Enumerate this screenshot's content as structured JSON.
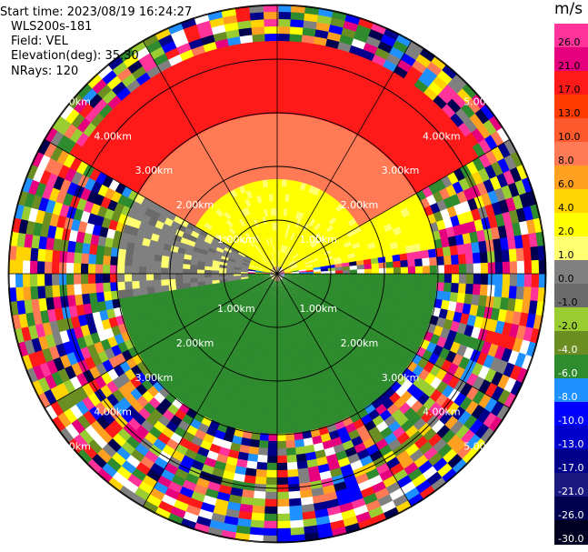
{
  "header": {
    "start_time": "Start time: 2023/08/19 16:24:27",
    "instrument": "WLS200s-181",
    "field": "Field: VEL",
    "elevation": "Elevation(deg): 35.30",
    "nrays": "NRays: 120"
  },
  "colorbar": {
    "unit": "m/s",
    "ticks": [
      "26.0",
      "21.0",
      "17.0",
      "13.0",
      "10.0",
      "8.0",
      "6.0",
      "4.0",
      "2.0",
      "1.0",
      "0.0",
      "-1.0",
      "-2.0",
      "-4.0",
      "-6.0",
      "-8.0",
      "-10.0",
      "-13.0",
      "-17.0",
      "-21.0",
      "-26.0",
      "-30.0"
    ],
    "colors": [
      "#ff3399",
      "#e6007e",
      "#ff1a1a",
      "#ff3b00",
      "#ff5a2e",
      "#ff7a55",
      "#ffa020",
      "#ffd400",
      "#ffff00",
      "#ffff70",
      "#808080",
      "#6b6b6b",
      "#9acd32",
      "#6b8e23",
      "#2e8b2e",
      "#1e90ff",
      "#0000ff",
      "#0000cd",
      "#00008b",
      "#1a1a80",
      "#000050",
      "#000020"
    ]
  },
  "chart_data": {
    "type": "heatmap",
    "field": "VEL",
    "unit": "m/s",
    "n_rays": 120,
    "range_rings_km": [
      1.0,
      2.0,
      3.0,
      4.0,
      5.0
    ],
    "ring_label": [
      "1.00km",
      "2.00km",
      "3.00km",
      "4.00km",
      "5.00km"
    ],
    "value_range": [
      -30.0,
      26.0
    ],
    "description_sectors": [
      {
        "azimuth_from": 280,
        "azimuth_to": 80,
        "range_km": [
          0.2,
          3.0
        ],
        "velocity": 2.0
      },
      {
        "azimuth_from": 300,
        "azimuth_to": 60,
        "range_km": [
          1.8,
          3.0
        ],
        "velocity": 8.0
      },
      {
        "azimuth_from": 90,
        "azimuth_to": 270,
        "range_km": [
          0.2,
          3.0
        ],
        "velocity": -6.0
      },
      {
        "azimuth_from": 260,
        "azimuth_to": 300,
        "range_km": [
          0.5,
          3.0
        ],
        "velocity": 0.0
      },
      {
        "azimuth_from": 300,
        "azimuth_to": 60,
        "range_km": [
          3.0,
          4.3
        ],
        "velocity": 17.0
      }
    ]
  }
}
